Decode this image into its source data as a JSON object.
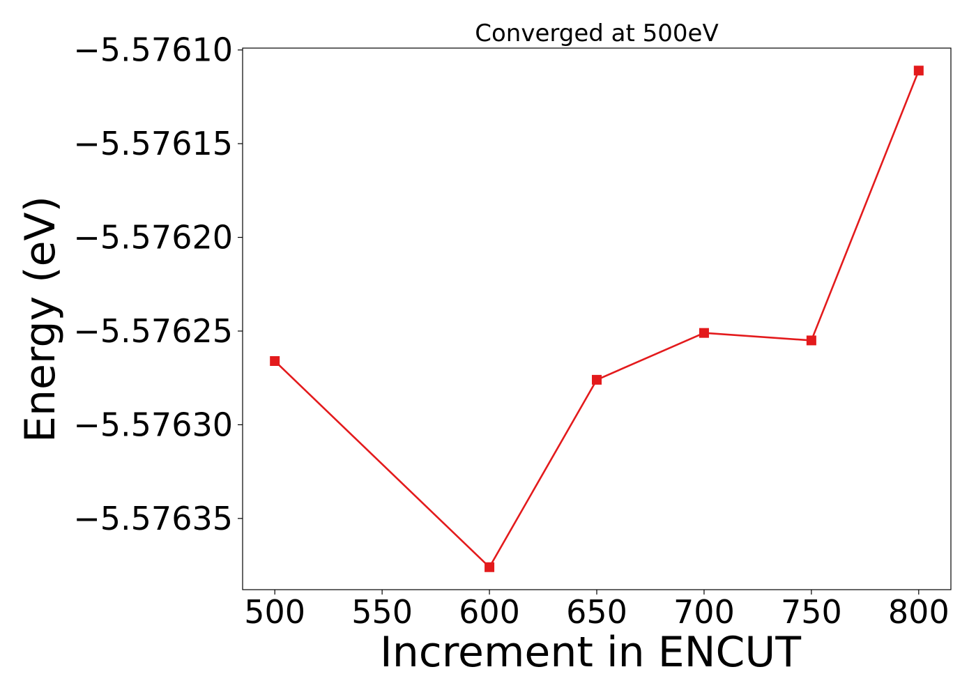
{
  "chart_data": {
    "type": "line",
    "title": "Converged at 500eV",
    "xlabel": "Increment in ENCUT",
    "ylabel": "Energy (eV)",
    "x": [
      500,
      600,
      650,
      700,
      750,
      800
    ],
    "series": [
      {
        "values": [
          -5.576266,
          -5.576376,
          -5.576276,
          -5.576251,
          -5.576255,
          -5.576111
        ],
        "color": "#e31a1c",
        "marker": "square"
      }
    ],
    "xlim": [
      485,
      815
    ],
    "ylim": [
      -5.576388,
      -5.576099
    ],
    "xticks": [
      500,
      550,
      600,
      650,
      700,
      750,
      800
    ],
    "xtick_labels": [
      "500",
      "550",
      "600",
      "650",
      "700",
      "750",
      "800"
    ],
    "yticks": [
      -5.5761,
      -5.57615,
      -5.5762,
      -5.57625,
      -5.5763,
      -5.57635
    ],
    "ytick_labels": [
      "−5.57610",
      "−5.57615",
      "−5.57620",
      "−5.57625",
      "−5.57630",
      "−5.57635"
    ],
    "grid": false,
    "legend": "none"
  }
}
